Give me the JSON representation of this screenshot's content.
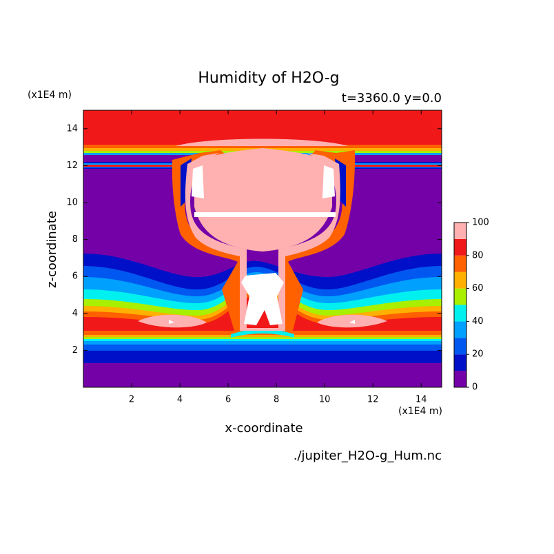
{
  "chart_data": {
    "type": "contour",
    "title": "Humidity of H2O-g",
    "subtitle": "t=3360.0 y=0.0",
    "xlabel": "x-coordinate",
    "ylabel": "z-coordinate",
    "xunit": "(x1E4 m)",
    "yunit": "(x1E4 m)",
    "source": "./jupiter_H2O-g_Hum.nc",
    "xlim": [
      0,
      14.85
    ],
    "ylim": [
      0,
      15
    ],
    "xticks": [
      2,
      4,
      6,
      8,
      10,
      12,
      14
    ],
    "yticks": [
      2,
      4,
      6,
      8,
      10,
      12,
      14
    ],
    "levels": [
      0,
      10,
      20,
      30,
      40,
      50,
      60,
      70,
      80,
      90,
      100
    ],
    "colors": [
      "#7400a8",
      "#0010c8",
      "#0058f0",
      "#00a0ff",
      "#00f0f0",
      "#a8f000",
      "#ffb000",
      "#ff6000",
      "#f01818",
      "#ffb0b0"
    ],
    "over_color": "#ffffff",
    "colorbar_ticks": [
      0,
      20,
      40,
      60,
      80,
      100
    ]
  }
}
